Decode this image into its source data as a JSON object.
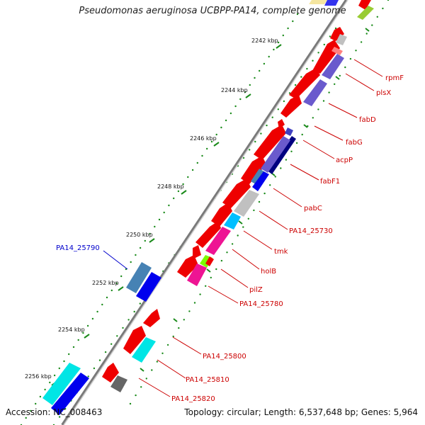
{
  "title": "Pseudomonas aeruginosa UCBPP-PA14, complete genome",
  "accession": "Accession: NC_008463",
  "summary": "Topology: circular; Length: 6,537,648 bp; Genes: 5,964",
  "colors": {
    "backbone": "#808080",
    "tick": "#1a8a1a",
    "red_label": "#cc0000",
    "blue_label": "#0000cc",
    "red_gene": "#ee0000",
    "cyan_gene": "#00e5e5",
    "blue_gene": "#0000ee",
    "steel_gene": "#4682b4",
    "magenta_gene": "#ee1493",
    "gray_gene": "#c0c0c0",
    "purple_gene": "#6a5acd",
    "navy_gene": "#000080",
    "green_gene": "#7cfc00",
    "salmon_gene": "#ff7f7f",
    "dark_gray_gene": "#666666"
  },
  "kbp_ticks": [
    {
      "kbp": 2242,
      "label": "2242 kbp"
    },
    {
      "kbp": 2244,
      "label": "2244 kbp"
    },
    {
      "kbp": 2246,
      "label": "2246 kbp"
    },
    {
      "kbp": 2248,
      "label": "2248 kbp"
    },
    {
      "kbp": 2250,
      "label": "2250 kbp"
    },
    {
      "kbp": 2252,
      "label": "2252 kbp"
    },
    {
      "kbp": 2254,
      "label": "2254 kbp"
    },
    {
      "kbp": 2256,
      "label": "2256 kbp"
    }
  ],
  "gene_labels": [
    {
      "name": "rpmF",
      "color": "red"
    },
    {
      "name": "plsX",
      "color": "red"
    },
    {
      "name": "fabD",
      "color": "red"
    },
    {
      "name": "fabG",
      "color": "red"
    },
    {
      "name": "acpP",
      "color": "red"
    },
    {
      "name": "fabF1",
      "color": "red"
    },
    {
      "name": "pabC",
      "color": "red"
    },
    {
      "name": "PA14_25730",
      "color": "red"
    },
    {
      "name": "tmk",
      "color": "red"
    },
    {
      "name": "holB",
      "color": "red"
    },
    {
      "name": "pilZ",
      "color": "red"
    },
    {
      "name": "PA14_25780",
      "color": "red"
    },
    {
      "name": "PA14_25790",
      "color": "blue"
    },
    {
      "name": "PA14_25800",
      "color": "red"
    },
    {
      "name": "PA14_25810",
      "color": "red"
    },
    {
      "name": "PA14_25820",
      "color": "red"
    }
  ]
}
